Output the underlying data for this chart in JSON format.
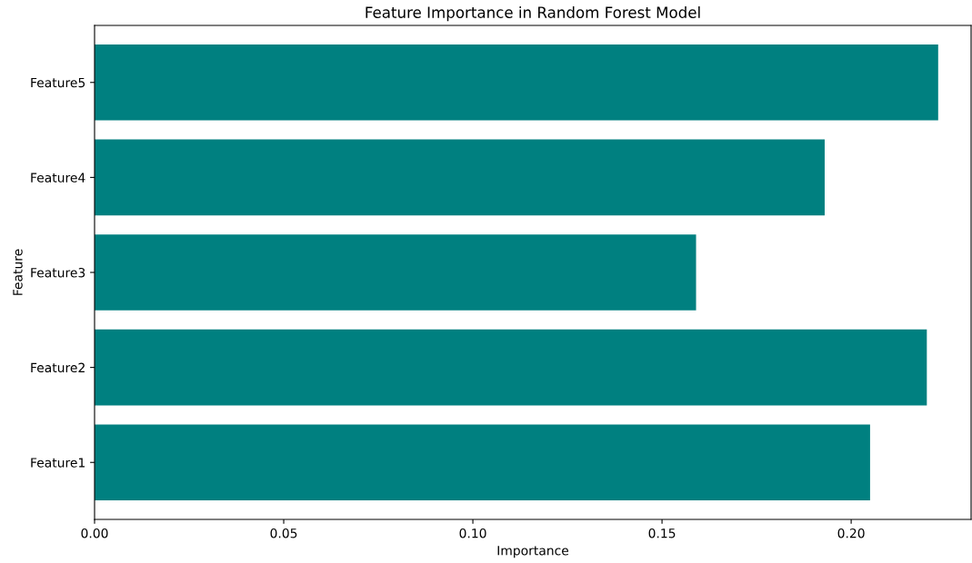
{
  "chart_data": {
    "type": "bar",
    "orientation": "horizontal",
    "title": "Feature Importance in Random Forest Model",
    "xlabel": "Importance",
    "ylabel": "Feature",
    "categories": [
      "Feature5",
      "Feature4",
      "Feature3",
      "Feature2",
      "Feature1"
    ],
    "values": [
      0.223,
      0.193,
      0.159,
      0.22,
      0.205
    ],
    "color": "#008080",
    "xlim": [
      0,
      0.2317
    ],
    "xticks": [
      {
        "value": 0,
        "label": "0.00"
      },
      {
        "value": 0.05,
        "label": "0.05"
      },
      {
        "value": 0.1,
        "label": "0.10"
      },
      {
        "value": 0.15,
        "label": "0.15"
      },
      {
        "value": 0.2,
        "label": "0.20"
      }
    ],
    "grid": false,
    "legend": false
  }
}
